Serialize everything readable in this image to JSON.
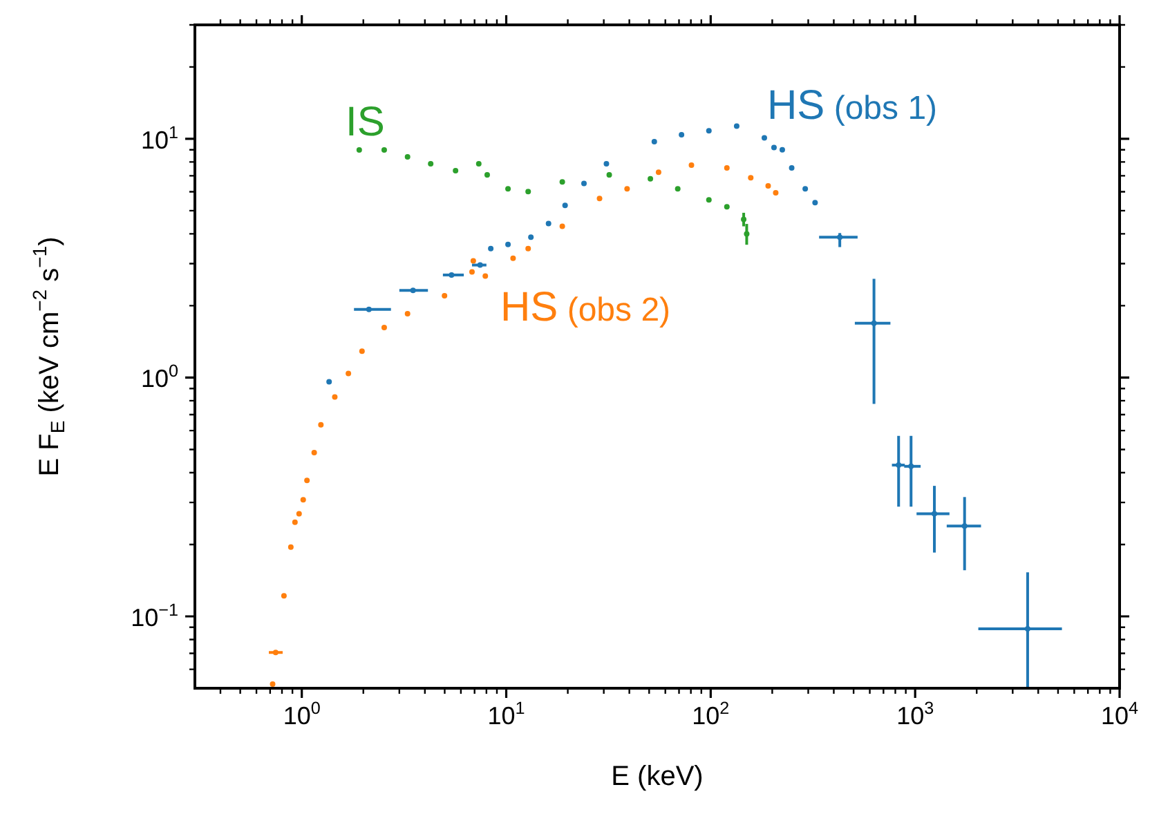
{
  "chart_data": {
    "type": "scatter",
    "xlabel": "E (keV)",
    "ylabel": "E F$_{E}$ (keV cm$^{−2}$ s$^{−1}$)",
    "log": "xy",
    "marker": "circle",
    "xlim": [
      0.3,
      10000
    ],
    "ylim": [
      0.05,
      30
    ],
    "xticks": [
      {
        "value": 0.4,
        "label": null
      },
      {
        "value": 0.5,
        "label": null
      },
      {
        "value": 0.6,
        "label": null
      },
      {
        "value": 0.7,
        "label": null
      },
      {
        "value": 0.8,
        "label": null
      },
      {
        "value": 0.9,
        "label": null
      },
      {
        "value": 1,
        "label": "10$^{0}$"
      },
      {
        "value": 2,
        "label": null
      },
      {
        "value": 3,
        "label": null
      },
      {
        "value": 4,
        "label": null
      },
      {
        "value": 5,
        "label": null
      },
      {
        "value": 6,
        "label": null
      },
      {
        "value": 7,
        "label": null
      },
      {
        "value": 8,
        "label": null
      },
      {
        "value": 9,
        "label": null
      },
      {
        "value": 10,
        "label": "10$^{1}$"
      },
      {
        "value": 20,
        "label": null
      },
      {
        "value": 30,
        "label": null
      },
      {
        "value": 40,
        "label": null
      },
      {
        "value": 50,
        "label": null
      },
      {
        "value": 60,
        "label": null
      },
      {
        "value": 70,
        "label": null
      },
      {
        "value": 80,
        "label": null
      },
      {
        "value": 90,
        "label": null
      },
      {
        "value": 100,
        "label": "10$^{2}$"
      },
      {
        "value": 200,
        "label": null
      },
      {
        "value": 300,
        "label": null
      },
      {
        "value": 400,
        "label": null
      },
      {
        "value": 500,
        "label": null
      },
      {
        "value": 600,
        "label": null
      },
      {
        "value": 700,
        "label": null
      },
      {
        "value": 800,
        "label": null
      },
      {
        "value": 900,
        "label": null
      },
      {
        "value": 1000,
        "label": "10$^{3}$"
      },
      {
        "value": 2000,
        "label": null
      },
      {
        "value": 3000,
        "label": null
      },
      {
        "value": 4000,
        "label": null
      },
      {
        "value": 5000,
        "label": null
      },
      {
        "value": 6000,
        "label": null
      },
      {
        "value": 7000,
        "label": null
      },
      {
        "value": 8000,
        "label": null
      },
      {
        "value": 9000,
        "label": null
      },
      {
        "value": 10000,
        "label": "10$^{4}$"
      }
    ],
    "yticks": [
      {
        "value": 0.06,
        "label": null
      },
      {
        "value": 0.07,
        "label": null
      },
      {
        "value": 0.08,
        "label": null
      },
      {
        "value": 0.09,
        "label": null
      },
      {
        "value": 0.1,
        "label": "10$^{−1}$"
      },
      {
        "value": 0.2,
        "label": null
      },
      {
        "value": 0.3,
        "label": null
      },
      {
        "value": 0.4,
        "label": null
      },
      {
        "value": 0.5,
        "label": null
      },
      {
        "value": 0.6,
        "label": null
      },
      {
        "value": 0.7,
        "label": null
      },
      {
        "value": 0.8,
        "label": null
      },
      {
        "value": 0.9,
        "label": null
      },
      {
        "value": 1,
        "label": "10$^{0}$"
      },
      {
        "value": 2,
        "label": null
      },
      {
        "value": 3,
        "label": null
      },
      {
        "value": 4,
        "label": null
      },
      {
        "value": 5,
        "label": null
      },
      {
        "value": 6,
        "label": null
      },
      {
        "value": 7,
        "label": null
      },
      {
        "value": 8,
        "label": null
      },
      {
        "value": 9,
        "label": null
      },
      {
        "value": 10,
        "label": "10$^{1}$"
      },
      {
        "value": 20,
        "label": null
      },
      {
        "value": 30,
        "label": null
      }
    ],
    "series": [
      {
        "name": "HS (obs 1)",
        "color": "#1f77b4",
        "x": [
          1.36,
          2.13,
          3.5,
          5.4,
          7.45,
          8.4,
          10.2,
          13.2,
          16.1,
          19.4,
          24,
          30.9,
          53,
          72,
          98,
          134,
          183,
          204,
          224,
          249,
          290,
          324,
          428,
          629,
          830,
          955,
          1242,
          1745,
          3550
        ],
        "values": [
          0.96,
          1.93,
          2.32,
          2.69,
          2.96,
          3.47,
          3.61,
          3.87,
          4.42,
          5.26,
          6.5,
          7.86,
          9.73,
          10.4,
          10.8,
          11.3,
          10.1,
          9.2,
          9.0,
          7.55,
          6.17,
          5.4,
          3.87,
          1.69,
          0.43,
          0.425,
          0.269,
          0.239,
          0.0887
        ],
        "errors": [
          null,
          null,
          null,
          null,
          null,
          null,
          null,
          null,
          null,
          null,
          null,
          null,
          null,
          null,
          null,
          null,
          null,
          null,
          null,
          null,
          null,
          null,
          [
            3.52,
            4.03
          ],
          [
            0.776,
            2.59
          ],
          [
            0.288,
            0.57
          ],
          [
            0.288,
            0.57
          ],
          [
            0.185,
            0.352
          ],
          [
            0.156,
            0.316
          ],
          [
            0.05,
            0.153
          ]
        ],
        "xerrors": [
          null,
          [
            1.8,
            2.73
          ],
          [
            3.0,
            4.14
          ],
          [
            4.9,
            6.2
          ],
          [
            6.8,
            8.0
          ],
          null,
          null,
          null,
          null,
          null,
          null,
          null,
          null,
          null,
          null,
          null,
          null,
          null,
          null,
          null,
          null,
          null,
          [
            339,
            523
          ],
          [
            507,
            757
          ],
          [
            770,
            890
          ],
          [
            884,
            1064
          ],
          [
            1016,
            1472
          ],
          [
            1427,
            2100
          ],
          [
            2037,
            5224
          ]
        ]
      },
      {
        "name": "HS (obs 2)",
        "color": "#ff7f0e",
        "x": [
          0.72,
          0.745,
          0.818,
          0.884,
          0.926,
          0.97,
          1.016,
          1.06,
          1.15,
          1.24,
          1.45,
          1.69,
          1.97,
          2.53,
          3.29,
          4.99,
          6.8,
          6.9,
          7.9,
          10.8,
          12.8,
          18.8,
          28.6,
          39,
          55.6,
          80.5,
          120,
          157,
          191,
          208
        ],
        "values": [
          0.052,
          0.0706,
          0.122,
          0.195,
          0.248,
          0.269,
          0.308,
          0.371,
          0.485,
          0.634,
          0.83,
          1.04,
          1.29,
          1.62,
          1.85,
          2.2,
          2.77,
          3.08,
          2.66,
          3.16,
          3.47,
          4.3,
          5.62,
          6.17,
          7.25,
          7.76,
          7.55,
          6.87,
          6.35,
          5.94
        ],
        "xerrors": [
          null,
          [
            0.69,
            0.806
          ],
          null,
          null,
          null,
          null,
          null,
          null,
          null,
          null,
          null,
          null,
          null,
          null,
          null,
          null,
          null,
          null,
          null,
          null,
          null,
          null,
          null,
          null,
          null,
          null,
          null,
          null,
          null,
          null
        ]
      },
      {
        "name": "IS",
        "color": "#2ca02c",
        "x": [
          1.91,
          2.53,
          3.29,
          4.27,
          5.65,
          7.34,
          8.07,
          10.2,
          12.8,
          18.8,
          31.9,
          50.7,
          69,
          98,
          120,
          145,
          150
        ],
        "values": [
          8.98,
          8.98,
          8.4,
          7.86,
          7.35,
          7.86,
          7.06,
          6.17,
          6.01,
          6.6,
          7.06,
          6.8,
          6.17,
          5.55,
          5.19,
          4.6,
          4.0
        ],
        "errors": [
          null,
          null,
          null,
          null,
          null,
          null,
          null,
          null,
          null,
          null,
          null,
          null,
          null,
          null,
          null,
          [
            4.3,
            4.9
          ],
          [
            3.6,
            4.4
          ]
        ]
      }
    ]
  }
}
